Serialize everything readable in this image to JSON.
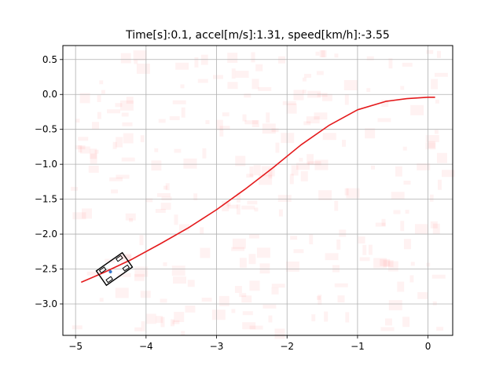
{
  "chart_data": {
    "type": "line",
    "title": "Time[s]:0.1, accel[m/s]:1.31, speed[km/h]:-3.55",
    "xlabel": "",
    "ylabel": "",
    "xlim": [
      -5.18,
      0.35
    ],
    "ylim": [
      -3.45,
      0.7
    ],
    "xticks": [
      -5,
      -4,
      -3,
      -2,
      -1,
      0
    ],
    "xtick_labels": [
      "−5",
      "−4",
      "−3",
      "−2",
      "−1",
      "0"
    ],
    "yticks": [
      0.5,
      0.0,
      -0.5,
      -1.0,
      -1.5,
      -2.0,
      -2.5,
      -3.0
    ],
    "ytick_labels": [
      "0.5",
      "0.0",
      "−0.5",
      "−1.0",
      "−1.5",
      "−2.0",
      "−2.5",
      "−3.0"
    ],
    "grid": true,
    "series": [
      {
        "color": "#e41a1c",
        "x": [
          -4.92,
          -4.6,
          -4.2,
          -3.8,
          -3.4,
          -3.0,
          -2.6,
          -2.2,
          -1.8,
          -1.4,
          -1.0,
          -0.6,
          -0.3,
          0.0,
          0.1
        ],
        "y": [
          -2.69,
          -2.55,
          -2.36,
          -2.14,
          -1.91,
          -1.65,
          -1.36,
          -1.05,
          -0.72,
          -0.44,
          -0.22,
          -0.1,
          -0.06,
          -0.04,
          -0.04
        ]
      }
    ],
    "vehicle": {
      "x": -4.45,
      "y": -2.5,
      "heading_deg": 35,
      "length_m": 0.45,
      "width_m": 0.25,
      "color": "#000000"
    },
    "point_cloud_color": "#ff0000"
  }
}
